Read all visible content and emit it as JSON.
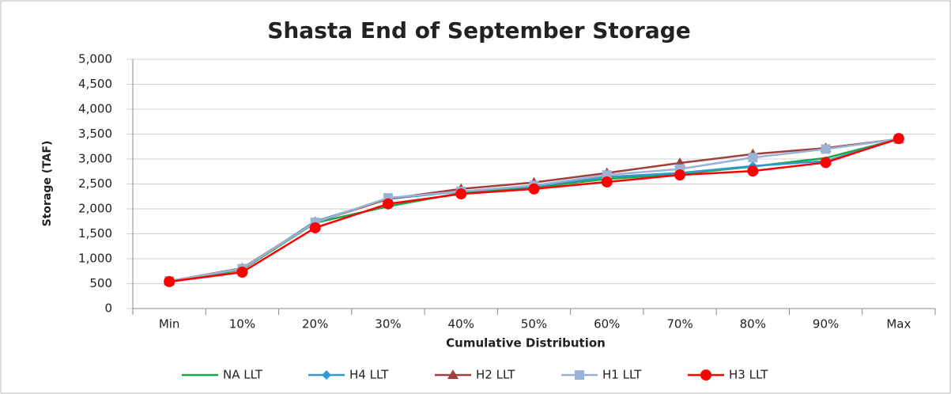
{
  "chart_data": {
    "type": "line",
    "title": "Shasta End of September Storage",
    "x_label": "Cumulative Distribution",
    "y_label": "Storage (TAF)",
    "categories": [
      "Min",
      "10%",
      "20%",
      "30%",
      "40%",
      "50%",
      "60%",
      "70%",
      "80%",
      "90%",
      "Max"
    ],
    "ylim": [
      0,
      5000
    ],
    "yticks": [
      0,
      500,
      {
        "value": 1000,
        "label": "1,000"
      },
      {
        "value": 1500,
        "label": "1,500"
      },
      {
        "value": 2000,
        "label": "2,000"
      },
      {
        "value": 2500,
        "label": "2,500"
      },
      {
        "value": 3000,
        "label": "3,000"
      },
      {
        "value": 3500,
        "label": "3,500"
      },
      {
        "value": 4000,
        "label": "4,000"
      },
      {
        "value": 4500,
        "label": "4,500"
      },
      {
        "value": 5000,
        "label": "5,000"
      }
    ],
    "grid": true,
    "legend": "bottom",
    "series": [
      {
        "name": "NA LLT",
        "color": "#1aa64a",
        "marker": "none",
        "values": [
          540,
          780,
          1720,
          2050,
          2320,
          2430,
          2600,
          2700,
          2850,
          3020,
          3400
        ]
      },
      {
        "name": "H4 LLT",
        "color": "#3399cc",
        "marker": "diamond",
        "values": [
          550,
          790,
          1750,
          2200,
          2350,
          2450,
          2640,
          2720,
          2860,
          2960,
          3400
        ]
      },
      {
        "name": "H2 LLT",
        "color": "#a0403c",
        "marker": "triangle",
        "values": [
          550,
          810,
          1730,
          2200,
          2400,
          2530,
          2720,
          2920,
          3100,
          3220,
          3400
        ]
      },
      {
        "name": "H1 LLT",
        "color": "#9ab3d5",
        "marker": "square",
        "values": [
          550,
          800,
          1730,
          2220,
          2350,
          2470,
          2680,
          2800,
          3030,
          3200,
          3400
        ]
      },
      {
        "name": "H3 LLT",
        "color": "#ff0000",
        "marker": "circle",
        "values": [
          540,
          730,
          1620,
          2100,
          2300,
          2400,
          2540,
          2680,
          2760,
          2930,
          3410
        ]
      }
    ]
  }
}
